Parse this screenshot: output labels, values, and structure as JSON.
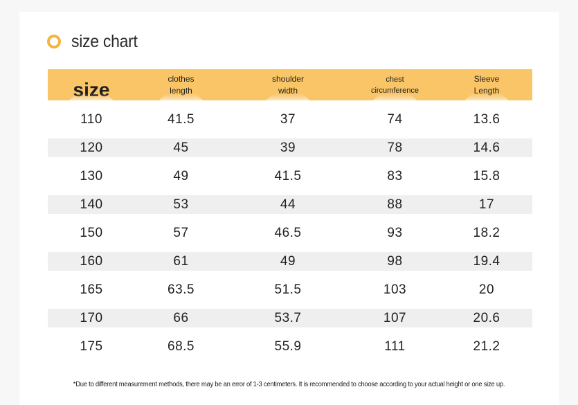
{
  "title": "size chart",
  "colors": {
    "accent": "#f3b53e",
    "header_bg": "#f9c566",
    "row_alt": "#efefef"
  },
  "icon": "ring-bullet-icon",
  "header": {
    "size": "size",
    "clothes_length": [
      "clothes",
      "length"
    ],
    "shoulder_width": [
      "shoulder",
      "width"
    ],
    "chest_circumference": [
      "chest",
      "circumference"
    ],
    "sleeve_length": [
      "Sleeve",
      "Length"
    ]
  },
  "rows": [
    [
      "110",
      "41.5",
      "37",
      "74",
      "13.6"
    ],
    [
      "120",
      "45",
      "39",
      "78",
      "14.6"
    ],
    [
      "130",
      "49",
      "41.5",
      "83",
      "15.8"
    ],
    [
      "140",
      "53",
      "44",
      "88",
      "17"
    ],
    [
      "150",
      "57",
      "46.5",
      "93",
      "18.2"
    ],
    [
      "160",
      "61",
      "49",
      "98",
      "19.4"
    ],
    [
      "165",
      "63.5",
      "51.5",
      "103",
      "20"
    ],
    [
      "170",
      "66",
      "53.7",
      "107",
      "20.6"
    ],
    [
      "175",
      "68.5",
      "55.9",
      "111",
      "21.2"
    ]
  ],
  "note": "*Due to different measurement methods, there may be an error of 1-3 centimeters. It is recommended to choose according to your actual height or one size up."
}
